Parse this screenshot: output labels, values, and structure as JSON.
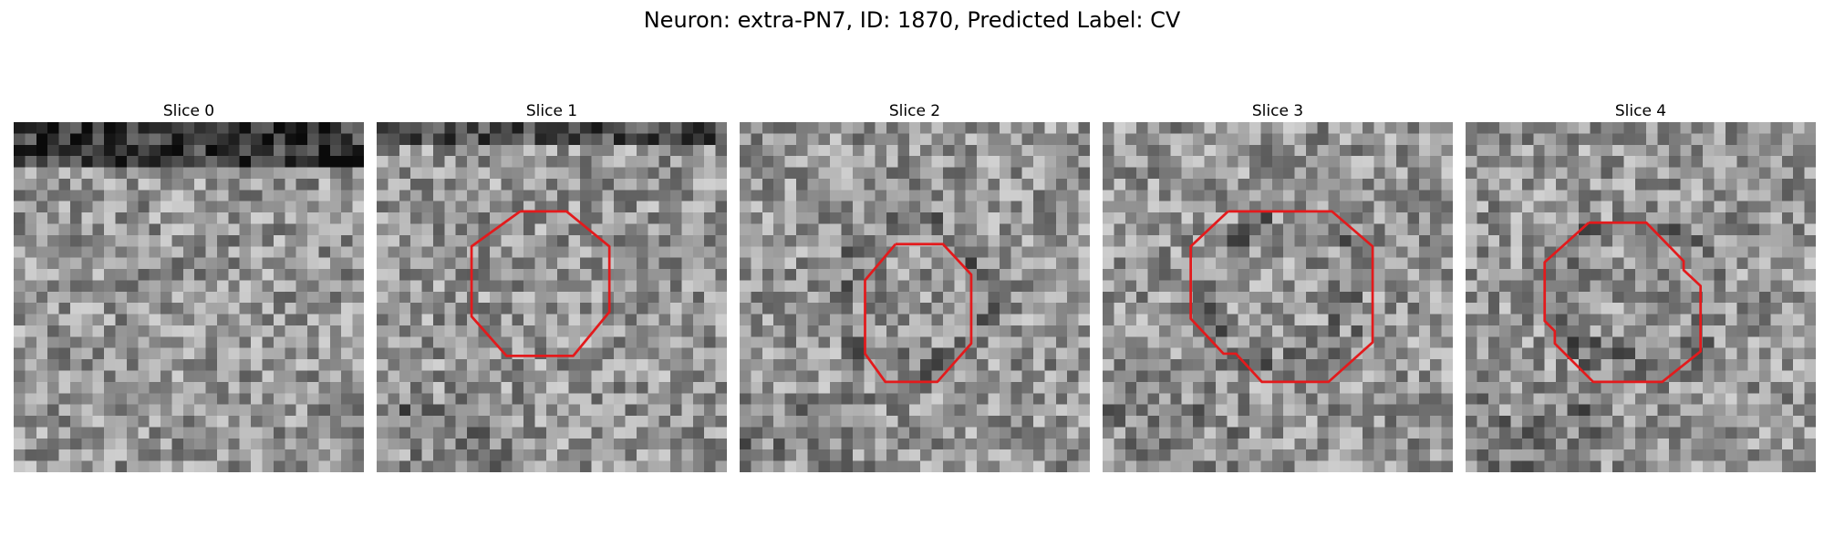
{
  "figure": {
    "title": "Neuron: extra-PN7, ID: 1870, Predicted Label: CV",
    "contour_color": "#e31a1c",
    "colormap": "gray",
    "grid_size": 31
  },
  "panels": [
    {
      "title": "Slice 0",
      "contour": []
    },
    {
      "title": "Slice 1",
      "contour": [
        [
          12.7,
          7.9
        ],
        [
          16.8,
          7.9
        ],
        [
          20.6,
          11.0
        ],
        [
          20.6,
          16.8
        ],
        [
          17.4,
          20.7
        ],
        [
          11.5,
          20.7
        ],
        [
          8.4,
          17.2
        ],
        [
          8.4,
          11.0
        ],
        [
          12.7,
          7.9
        ]
      ]
    },
    {
      "title": "Slice 2",
      "contour": [
        [
          13.8,
          10.8
        ],
        [
          18.0,
          10.8
        ],
        [
          20.5,
          13.5
        ],
        [
          20.5,
          19.6
        ],
        [
          17.5,
          23.0
        ],
        [
          12.9,
          23.0
        ],
        [
          11.1,
          20.5
        ],
        [
          11.1,
          14.0
        ],
        [
          13.8,
          10.8
        ]
      ]
    },
    {
      "title": "Slice 3",
      "contour": [
        [
          11.1,
          7.9
        ],
        [
          20.3,
          7.9
        ],
        [
          23.9,
          11.0
        ],
        [
          23.9,
          19.5
        ],
        [
          20.0,
          23.0
        ],
        [
          14.1,
          23.0
        ],
        [
          11.8,
          20.5
        ],
        [
          10.7,
          20.5
        ],
        [
          7.8,
          17.4
        ],
        [
          7.8,
          11.0
        ],
        [
          11.1,
          7.9
        ]
      ]
    },
    {
      "title": "Slice 4",
      "contour": [
        [
          10.9,
          8.9
        ],
        [
          16.0,
          8.9
        ],
        [
          19.3,
          12.3
        ],
        [
          19.3,
          13.1
        ],
        [
          20.8,
          14.5
        ],
        [
          20.8,
          20.3
        ],
        [
          17.4,
          23.0
        ],
        [
          11.3,
          23.0
        ],
        [
          7.9,
          19.6
        ],
        [
          7.9,
          18.5
        ],
        [
          7.0,
          17.6
        ],
        [
          7.0,
          12.4
        ],
        [
          10.9,
          8.9
        ]
      ]
    }
  ]
}
